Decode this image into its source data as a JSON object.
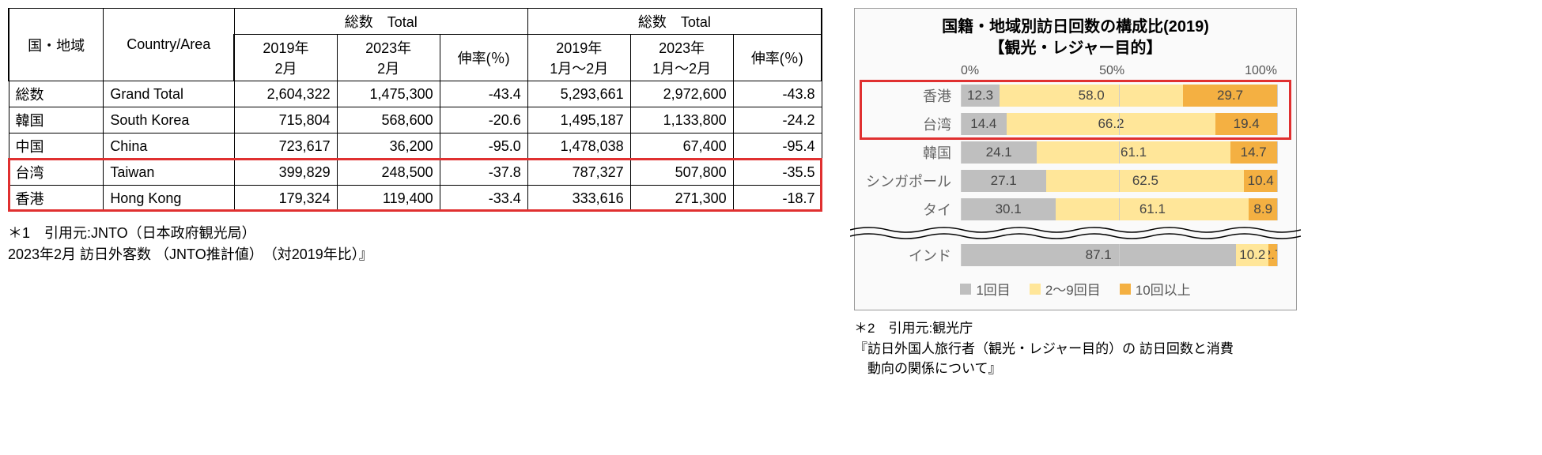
{
  "table": {
    "header": {
      "region_ja": "国・地域",
      "region_en": "Country/Area",
      "total_label": "総数　Total",
      "col_2019_feb": "2019年\n2月",
      "col_2023_feb": "2023年\n2月",
      "growth": "伸率(％)",
      "col_2019_jan_feb": "2019年\n1月～2月",
      "col_2023_jan_feb": "2023年\n1月～2月"
    },
    "rows": [
      {
        "ja": "総数",
        "en": "Grand Total",
        "a": "2,604,322",
        "b": "1,475,300",
        "c": "-43.4",
        "d": "5,293,661",
        "e": "2,972,600",
        "f": "-43.8",
        "hl": false
      },
      {
        "ja": "韓国",
        "en": "South Korea",
        "a": "715,804",
        "b": "568,600",
        "c": "-20.6",
        "d": "1,495,187",
        "e": "1,133,800",
        "f": "-24.2",
        "hl": false
      },
      {
        "ja": "中国",
        "en": "China",
        "a": "723,617",
        "b": "36,200",
        "c": "-95.0",
        "d": "1,478,038",
        "e": "67,400",
        "f": "-95.4",
        "hl": false
      },
      {
        "ja": "台湾",
        "en": "Taiwan",
        "a": "399,829",
        "b": "248,500",
        "c": "-37.8",
        "d": "787,327",
        "e": "507,800",
        "f": "-35.5",
        "hl": true
      },
      {
        "ja": "香港",
        "en": "Hong Kong",
        "a": "179,324",
        "b": "119,400",
        "c": "-33.4",
        "d": "333,616",
        "e": "271,300",
        "f": "-18.7",
        "hl": true
      }
    ],
    "footnote": {
      "l1": "＊1　引用元:JNTO（日本政府観光局）",
      "l2": "2023年2月 訪日外客数 （JNTO推計値）　（対2019年比）』"
    },
    "highlight_color": "#e03030"
  },
  "chart": {
    "title_l1": "国籍・地域別訪日回数の構成比(2019)",
    "title_l2": "【観光・レジャー目的】",
    "axis": {
      "t0": "0%",
      "t50": "50%",
      "t100": "100%"
    },
    "colors": {
      "seg1": "#bfbfbf",
      "seg2": "#ffe699",
      "seg3": "#f4b042",
      "grid": "#cccccc",
      "bg": "#fafafa",
      "border": "#999999"
    },
    "rows_top": [
      {
        "label": "香港",
        "v": [
          12.3,
          58.0,
          29.7
        ],
        "hl": true
      },
      {
        "label": "台湾",
        "v": [
          14.4,
          66.2,
          19.4
        ],
        "hl": true
      },
      {
        "label": "韓国",
        "v": [
          24.1,
          61.1,
          14.7
        ],
        "hl": false
      },
      {
        "label": "シンガポール",
        "v": [
          27.1,
          62.5,
          10.4
        ],
        "hl": false
      },
      {
        "label": "タイ",
        "v": [
          30.1,
          61.1,
          8.9
        ],
        "hl": false
      }
    ],
    "rows_bottom": [
      {
        "label": "インド",
        "v": [
          87.1,
          10.2,
          2.7
        ],
        "hl": false,
        "last_label": "10.2 2.7"
      }
    ],
    "legend": [
      {
        "label": "1回目",
        "color": "#bfbfbf"
      },
      {
        "label": "2～9回目",
        "color": "#ffe699"
      },
      {
        "label": "10回以上",
        "color": "#f4b042"
      }
    ],
    "footnote": {
      "l1": "＊2　引用元:観光庁",
      "l2": "『訪日外国人旅行者（観光・レジャー目的）の 訪日回数と消費",
      "l3": "　動向の関係について』"
    }
  }
}
